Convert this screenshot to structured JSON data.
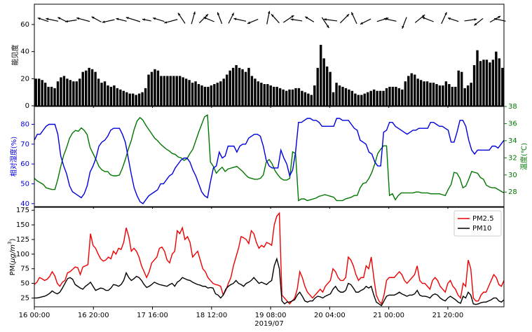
{
  "chart_data": [
    {
      "type": "bar",
      "ylabel": "能见度",
      "ylim": [
        0,
        75
      ],
      "yticks": [
        0,
        20,
        40,
        60
      ],
      "bar_color": "#000000",
      "values": [
        20,
        20,
        19,
        17,
        14,
        14,
        13,
        18,
        21,
        22,
        20,
        19,
        18,
        18,
        20,
        25,
        26,
        28,
        27,
        25,
        20,
        17,
        18,
        15,
        14,
        15,
        13,
        12,
        11,
        10,
        9,
        9,
        8,
        9,
        10,
        13,
        23,
        25,
        27,
        26,
        22,
        22,
        22,
        22,
        22,
        22,
        22,
        21,
        20,
        19,
        17,
        18,
        16,
        15,
        14,
        14,
        15,
        16,
        17,
        18,
        20,
        23,
        26,
        28,
        30,
        28,
        27,
        25,
        28,
        22,
        20,
        18,
        17,
        16,
        16,
        15,
        14,
        14,
        13,
        12,
        11,
        12,
        12,
        13,
        13,
        11,
        10,
        9,
        8,
        15,
        28,
        45,
        35,
        29,
        25,
        10,
        17,
        15,
        14,
        13,
        12,
        11,
        9,
        8,
        8,
        9,
        10,
        11,
        12,
        11,
        11,
        11,
        13,
        14,
        14,
        14,
        13,
        12,
        18,
        22,
        24,
        23,
        20,
        19,
        18,
        18,
        17,
        17,
        16,
        15,
        15,
        18,
        16,
        14,
        14,
        26,
        25,
        13,
        15,
        17,
        30,
        41,
        33,
        34,
        34,
        32,
        34,
        40,
        35,
        28
      ],
      "wind_y": 63,
      "wind": [
        [
          3,
          -1.2,
          0.4
        ],
        [
          6,
          -1.4,
          0.3
        ],
        [
          9,
          -1.0,
          0.5
        ],
        [
          12,
          -1.3,
          -0.2
        ],
        [
          16,
          -1.5,
          0.4
        ],
        [
          20,
          -1.1,
          0.6
        ],
        [
          24,
          -1.4,
          -0.3
        ],
        [
          28,
          -1.2,
          0.3
        ],
        [
          32,
          -1.6,
          0.5
        ],
        [
          36,
          -1.0,
          0.2
        ],
        [
          40,
          -1.3,
          0.4
        ],
        [
          44,
          -1.5,
          -0.4
        ],
        [
          47,
          -0.8,
          1.2
        ],
        [
          50,
          0.4,
          1.4
        ],
        [
          53,
          1.0,
          1.0
        ],
        [
          56,
          -1.2,
          0.5
        ],
        [
          59,
          -0.5,
          1.3
        ],
        [
          62,
          0.6,
          1.2
        ],
        [
          66,
          -1.4,
          0.3
        ],
        [
          70,
          -1.2,
          -0.5
        ],
        [
          74,
          0.3,
          1.5
        ],
        [
          77,
          -0.9,
          1.0
        ],
        [
          80,
          1.2,
          0.8
        ],
        [
          84,
          -1.3,
          0.2
        ],
        [
          88,
          -1.0,
          0.6
        ],
        [
          92,
          0.8,
          -1.2
        ],
        [
          95,
          -1.5,
          0.2
        ],
        [
          98,
          1.0,
          1.0
        ],
        [
          102,
          -0.6,
          1.3
        ],
        [
          106,
          -1.2,
          -0.6
        ],
        [
          110,
          1.3,
          0.4
        ],
        [
          114,
          -1.4,
          0.3
        ],
        [
          118,
          -0.5,
          -1.3
        ],
        [
          122,
          1.1,
          0.9
        ],
        [
          126,
          -1.3,
          0.5
        ],
        [
          130,
          0.6,
          1.3
        ],
        [
          134,
          -1.2,
          0.4
        ],
        [
          138,
          1.4,
          0.2
        ],
        [
          142,
          -1.0,
          -0.8
        ],
        [
          146,
          1.2,
          0.7
        ],
        [
          149,
          -1.3,
          0.3
        ]
      ]
    },
    {
      "type": "line",
      "ylabel": "相对湿度(%)",
      "y2label": "温度(℃)",
      "ylim": [
        38.5,
        89
      ],
      "yticks": [
        40,
        50,
        60,
        70,
        80
      ],
      "y2lim": [
        26.3,
        38
      ],
      "y2ticks": [
        28,
        30,
        32,
        34,
        36,
        38
      ],
      "series": [
        {
          "axis": "left",
          "color": "#0000dd",
          "values": [
            72,
            75,
            75,
            77,
            79,
            80,
            80,
            80,
            75,
            64,
            59,
            55,
            49,
            46,
            45,
            44,
            43,
            45,
            49,
            56,
            59,
            63,
            69,
            71,
            72,
            74,
            77,
            78,
            78,
            78,
            75,
            71,
            63,
            55,
            48,
            44,
            41,
            40,
            42,
            44,
            45,
            46,
            47,
            50,
            50,
            52,
            54,
            55,
            58,
            60,
            62,
            63,
            63,
            61,
            57,
            54,
            50,
            46,
            44,
            43,
            51,
            58,
            59,
            66,
            63,
            64,
            69,
            69,
            69,
            66,
            69,
            70,
            70,
            73,
            74,
            75,
            75,
            74,
            69,
            62,
            59,
            58,
            58,
            58,
            67,
            63,
            60,
            54,
            57,
            66,
            81,
            81,
            82,
            83,
            83,
            82,
            82,
            81,
            79,
            79,
            79,
            79,
            79,
            83,
            83,
            82,
            82,
            82,
            80,
            78,
            77,
            72,
            71,
            70,
            66,
            65,
            61,
            59,
            59,
            76,
            77,
            81,
            81,
            79,
            78,
            77,
            76,
            75,
            76,
            77,
            77,
            78,
            78,
            78,
            78,
            81,
            81,
            80,
            79,
            79,
            78,
            77,
            71,
            71,
            76,
            82,
            82,
            79,
            72,
            67,
            65,
            67,
            67,
            67,
            67,
            67,
            69,
            69,
            68,
            70,
            72
          ]
        },
        {
          "axis": "right",
          "color": "#007700",
          "values": [
            29.6,
            29.3,
            29.1,
            28.9,
            28.5,
            28.4,
            28.3,
            28.3,
            29.5,
            31.0,
            32.3,
            33.2,
            34.3,
            34.9,
            35.2,
            35.1,
            35.5,
            35.2,
            34.7,
            33.2,
            32.5,
            31.8,
            31.0,
            30.6,
            30.4,
            30.4,
            30.0,
            29.9,
            29.9,
            30.0,
            30.8,
            31.8,
            33.0,
            34.0,
            35.3,
            36.3,
            36.7,
            36.4,
            35.8,
            35.3,
            34.8,
            34.3,
            34.0,
            33.6,
            33.3,
            33.0,
            32.8,
            32.5,
            32.4,
            32.1,
            32.0,
            31.7,
            31.9,
            32.5,
            33.0,
            34.0,
            35.0,
            35.9,
            36.8,
            37.0,
            31.5,
            31.0,
            30.2,
            30.6,
            30.9,
            30.4,
            30.7,
            30.8,
            30.9,
            31.0,
            30.7,
            30.4,
            30.0,
            29.7,
            29.6,
            29.5,
            29.5,
            29.6,
            30.0,
            31.5,
            31.8,
            31.3,
            30.5,
            30.0,
            29.6,
            29.4,
            29.4,
            29.6,
            32.7,
            32.5,
            27.0,
            27.2,
            27.2,
            27.0,
            27.1,
            27.2,
            27.3,
            27.5,
            27.6,
            27.7,
            27.6,
            27.5,
            27.4,
            27.0,
            27.0,
            27.0,
            27.2,
            27.3,
            27.4,
            27.6,
            27.6,
            28.5,
            29.0,
            29.1,
            29.6,
            30.3,
            31.3,
            32.5,
            33.0,
            33.4,
            33.4,
            27.6,
            27.8,
            27.1,
            27.6,
            27.9,
            27.9,
            27.9,
            27.9,
            27.9,
            28.0,
            28.0,
            27.9,
            27.9,
            27.9,
            27.8,
            27.8,
            27.8,
            27.8,
            27.7,
            27.6,
            28.3,
            28.9,
            30.3,
            30.2,
            29.6,
            28.5,
            28.7,
            29.5,
            30.4,
            30.3,
            30.2,
            29.7,
            29.5,
            28.8,
            28.6,
            28.5,
            28.5,
            28.3,
            28.1,
            27.9
          ]
        }
      ]
    },
    {
      "type": "line",
      "ylabel": "PM($\\mu g/m^3$)",
      "ylabel_main": "PM(",
      "ylabel_italic": "μg/m",
      "ylabel_sup": "3",
      "ylabel_end": ")",
      "ylim": [
        10,
        180
      ],
      "yticks": [
        25,
        50,
        75,
        100,
        125,
        150,
        175
      ],
      "x_range": [
        0,
        159
      ],
      "x_ticks": [
        0,
        20,
        40,
        60,
        80,
        100,
        120,
        140
      ],
      "x_tick_labels": [
        "16 00:00",
        "16 20:00",
        "17 16:00",
        "18 12:00",
        "19 08:00",
        "20 04:00",
        "21 00:00",
        "21 20:00"
      ],
      "xlabel": "2019/07",
      "legend_position": "top-right",
      "series": [
        {
          "name": "PM2.5",
          "color": "#ee0000",
          "values": [
            48,
            52,
            60,
            58,
            55,
            57,
            62,
            70,
            63,
            50,
            45,
            52,
            55,
            68,
            70,
            74,
            78,
            77,
            65,
            78,
            80,
            82,
            135,
            115,
            110,
            100,
            92,
            88,
            90,
            95,
            92,
            105,
            100,
            110,
            108,
            120,
            145,
            130,
            105,
            110,
            105,
            95,
            80,
            70,
            60,
            70,
            85,
            90,
            95,
            110,
            112,
            105,
            90,
            85,
            100,
            105,
            140,
            135,
            145,
            125,
            130,
            120,
            95,
            100,
            105,
            90,
            75,
            70,
            60,
            55,
            50,
            48,
            47,
            45,
            30,
            38,
            50,
            60,
            80,
            95,
            110,
            130,
            128,
            125,
            118,
            140,
            135,
            120,
            110,
            115,
            112,
            120,
            118,
            115,
            150,
            165,
            170,
            30,
            25,
            20,
            15,
            20,
            25,
            40,
            70,
            60,
            45,
            35,
            30,
            25,
            30,
            35,
            40,
            35,
            45,
            50,
            55,
            75,
            70,
            60,
            55,
            55,
            60,
            95,
            90,
            80,
            65,
            55,
            60,
            60,
            80,
            75,
            95,
            60,
            30,
            20,
            15,
            30,
            55,
            60,
            60,
            60,
            65,
            70,
            65,
            55,
            50,
            55,
            60,
            65,
            80,
            55,
            50,
            50,
            45,
            40,
            55,
            60,
            55,
            45,
            40,
            35,
            50,
            55,
            45,
            40,
            30,
            25,
            50,
            45,
            90,
            75,
            25,
            20,
            20,
            30,
            35,
            35,
            45,
            55,
            65,
            60,
            48,
            45,
            55
          ]
        },
        {
          "name": "PM10",
          "color": "#000000",
          "values": [
            25,
            25,
            26,
            27,
            28,
            30,
            33,
            37,
            34,
            32,
            35,
            42,
            50,
            58,
            60,
            57,
            48,
            45,
            42,
            40,
            45,
            48,
            52,
            45,
            38,
            40,
            42,
            41,
            38,
            38,
            42,
            48,
            47,
            45,
            48,
            55,
            68,
            60,
            55,
            58,
            62,
            60,
            55,
            48,
            43,
            45,
            48,
            52,
            50,
            48,
            47,
            46,
            45,
            48,
            50,
            45,
            52,
            55,
            60,
            58,
            56,
            55,
            52,
            50,
            48,
            47,
            45,
            45,
            42,
            43,
            42,
            32,
            30,
            25,
            30,
            40,
            45,
            48,
            50,
            55,
            50,
            48,
            45,
            50,
            52,
            55,
            60,
            55,
            50,
            52,
            50,
            48,
            52,
            55,
            80,
            92,
            75,
            20,
            15,
            18,
            18,
            20,
            22,
            30,
            35,
            28,
            20,
            18,
            20,
            20,
            25,
            28,
            27,
            25,
            28,
            30,
            32,
            40,
            45,
            38,
            35,
            35,
            38,
            50,
            48,
            42,
            35,
            35,
            38,
            40,
            45,
            42,
            45,
            30,
            18,
            15,
            12,
            20,
            28,
            30,
            30,
            30,
            32,
            35,
            32,
            30,
            28,
            30,
            30,
            32,
            38,
            30,
            28,
            28,
            27,
            25,
            30,
            32,
            30,
            25,
            22,
            20,
            25,
            28,
            25,
            22,
            18,
            16,
            28,
            25,
            35,
            30,
            15,
            14,
            15,
            17,
            18,
            18,
            20,
            22,
            25,
            25,
            20,
            18,
            22
          ]
        }
      ]
    }
  ]
}
